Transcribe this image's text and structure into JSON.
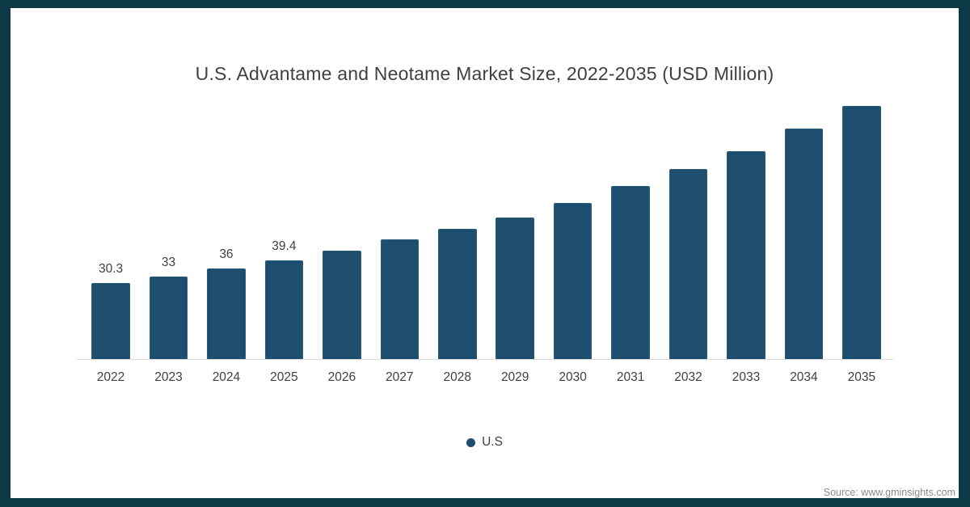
{
  "frame": {
    "border_color": "#0d3a46",
    "background_color": "#ffffff"
  },
  "title": "U.S. Advantame and Neotame Market Size, 2022-2035 (USD Million)",
  "legend": {
    "label": "U.S",
    "marker_color": "#1d4e6e"
  },
  "source": "Source: www.gminsights.com",
  "chart_data": {
    "type": "bar",
    "title": "U.S. Advantame and Neotame Market Size, 2022-2035 (USD Million)",
    "unit": "USD Million",
    "categories": [
      "2022",
      "2023",
      "2024",
      "2025",
      "2026",
      "2027",
      "2028",
      "2029",
      "2030",
      "2031",
      "2032",
      "2033",
      "2034",
      "2035"
    ],
    "series": [
      {
        "name": "U.S",
        "values": [
          30.3,
          33,
          36,
          39.4,
          43.2,
          47.8,
          52,
          56.5,
          62.3,
          69,
          75.7,
          83,
          91.8,
          101
        ]
      }
    ],
    "data_labels": [
      "30.3",
      "33",
      "36",
      "39.4",
      null,
      null,
      null,
      null,
      null,
      null,
      null,
      null,
      null,
      null
    ],
    "bar_color": "#1d4e6e",
    "bar_edge_color": "#2a5d7c",
    "axis_line_color": "#d9d9d9",
    "label_color": "#404040",
    "ylim": [
      0,
      105
    ],
    "grid": false,
    "y_axis_visible": false,
    "legend_position": "bottom-center"
  }
}
